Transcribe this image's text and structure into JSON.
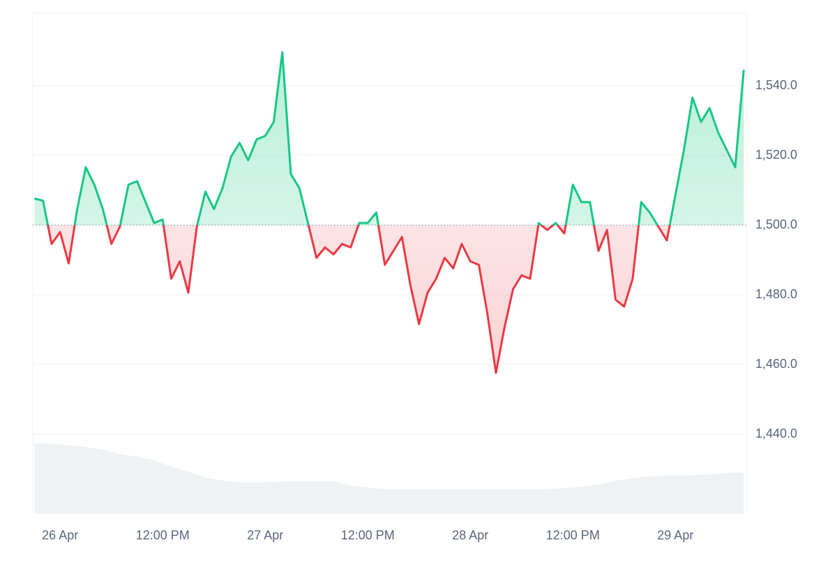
{
  "chart_data": {
    "type": "line",
    "x": [
      -3,
      -2,
      -1,
      0,
      1,
      2,
      3,
      4,
      5,
      6,
      7,
      8,
      9,
      10,
      11,
      12,
      13,
      14,
      15,
      16,
      17,
      18,
      19,
      20,
      21,
      22,
      23,
      24,
      25,
      26,
      27,
      28,
      29,
      30,
      31,
      32,
      33,
      34,
      35,
      36,
      37,
      38,
      39,
      40,
      41,
      42,
      43,
      44,
      45,
      46,
      47,
      48,
      49,
      50,
      51,
      52,
      53,
      54,
      55,
      56,
      57,
      58,
      59,
      60,
      61,
      62,
      63,
      64,
      65,
      66,
      67,
      68,
      69,
      70,
      71,
      72,
      73,
      74,
      75,
      76,
      77,
      78,
      79,
      80
    ],
    "values": [
      1507.6,
      1507,
      1494.6,
      1498,
      1489,
      1504.6,
      1516.6,
      1511.6,
      1504.6,
      1494.6,
      1499.6,
      1511.6,
      1512.6,
      1506.6,
      1500.6,
      1501.6,
      1484.6,
      1489.6,
      1480.6,
      1499.6,
      1509.6,
      1504.6,
      1510.6,
      1519.6,
      1523.6,
      1518.6,
      1524.6,
      1525.6,
      1529.6,
      1549.6,
      1514.6,
      1510.6,
      1500.6,
      1490.6,
      1493.6,
      1491.6,
      1494.6,
      1493.6,
      1500.6,
      1500.6,
      1503.6,
      1488.6,
      1492.6,
      1496.6,
      1482.6,
      1471.6,
      1480.6,
      1484.6,
      1490.6,
      1487.6,
      1494.6,
      1489.6,
      1488.6,
      1474.6,
      1457.6,
      1470.6,
      1481.6,
      1485.6,
      1484.6,
      1500.6,
      1498.6,
      1500.6,
      1497.6,
      1511.6,
      1506.6,
      1506.6,
      1492.6,
      1498.6,
      1478.6,
      1476.6,
      1484.6,
      1506.6,
      1503.6,
      1499.6,
      1495.6,
      1508.6,
      1521.6,
      1536.6,
      1529.6,
      1533.6,
      1526.6,
      1521.6,
      1516.6,
      1544.6
    ],
    "baseline": 1500,
    "colors": {
      "up": "#16c784",
      "down": "#ea3943"
    },
    "volume": {
      "axis": "y2",
      "color": "#eff2f5",
      "values": [
        14.0,
        14.0,
        13.9,
        13.8,
        13.6,
        13.5,
        13.3,
        13.0,
        12.8,
        12.3,
        11.9,
        11.6,
        11.4,
        11.0,
        10.7,
        10.0,
        9.4,
        8.9,
        8.4,
        7.8,
        7.2,
        6.9,
        6.6,
        6.4,
        6.3,
        6.3,
        6.3,
        6.3,
        6.4,
        6.4,
        6.5,
        6.5,
        6.5,
        6.5,
        6.5,
        6.5,
        6.0,
        5.6,
        5.4,
        5.2,
        5.0,
        4.9,
        4.9,
        4.9,
        4.9,
        4.9,
        4.9,
        4.9,
        4.9,
        4.9,
        4.9,
        4.9,
        4.9,
        4.9,
        4.9,
        4.9,
        4.9,
        4.9,
        4.9,
        4.9,
        4.9,
        5.0,
        5.1,
        5.2,
        5.4,
        5.6,
        5.8,
        6.2,
        6.6,
        6.8,
        7.1,
        7.3,
        7.4,
        7.5,
        7.6,
        7.6,
        7.6,
        7.7,
        7.8,
        7.9,
        8.0,
        8.1,
        8.2,
        8.2
      ]
    },
    "xlim": [
      -3.2,
      80.3
    ],
    "xticks": [
      {
        "value": 0,
        "label": "26 Apr"
      },
      {
        "value": 12,
        "label": "12:00 PM"
      },
      {
        "value": 24,
        "label": "27 Apr"
      },
      {
        "value": 36,
        "label": "12:00 PM"
      },
      {
        "value": 48,
        "label": "28 Apr"
      },
      {
        "value": 60,
        "label": "12:00 PM"
      },
      {
        "value": 72,
        "label": "29 Apr"
      }
    ],
    "ylim": [
      1417.2,
      1561
    ],
    "yticks": [
      {
        "value": 1440,
        "label": "1,440.0"
      },
      {
        "value": 1460,
        "label": "1,460.0"
      },
      {
        "value": 1480,
        "label": "1,480.0"
      },
      {
        "value": 1500,
        "label": "1,500.0"
      },
      {
        "value": 1520,
        "label": "1,520.0"
      },
      {
        "value": 1540,
        "label": "1,540.0"
      }
    ],
    "y2lim": [
      0,
      100
    ],
    "grid": true
  }
}
